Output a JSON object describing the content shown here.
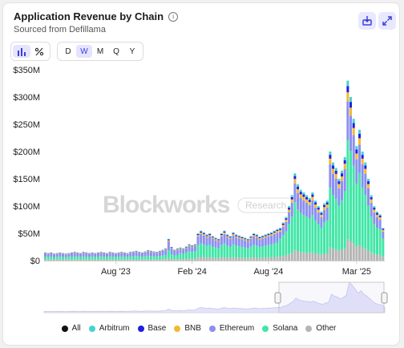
{
  "header": {
    "title": "Application Revenue by Chain",
    "subtitle": "Sourced from Defillama"
  },
  "toolbar": {
    "chart_types": [
      {
        "icon": "bar-chart-icon",
        "active": true
      },
      {
        "icon": "percent-icon",
        "active": false
      }
    ],
    "periods": [
      {
        "label": "D",
        "active": false
      },
      {
        "label": "W",
        "active": true
      },
      {
        "label": "M",
        "active": false
      },
      {
        "label": "Q",
        "active": false
      },
      {
        "label": "Y",
        "active": false
      }
    ]
  },
  "watermark": {
    "brand": "Blockworks",
    "badge": "Research"
  },
  "colors": {
    "Arbitrum": "#45d3d3",
    "Base": "#1f1fe0",
    "BNB": "#f2b933",
    "Ethereum": "#8b8ff0",
    "Solana": "#41e6a6",
    "Other": "#b5b5b5",
    "All": "#111111",
    "accent": "#3d3de0"
  },
  "legend": [
    {
      "name": "All",
      "color": "#111111"
    },
    {
      "name": "Arbitrum",
      "color": "#45d3d3"
    },
    {
      "name": "Base",
      "color": "#1f1fe0"
    },
    {
      "name": "BNB",
      "color": "#f2b933"
    },
    {
      "name": "Ethereum",
      "color": "#8b8ff0"
    },
    {
      "name": "Solana",
      "color": "#41e6a6"
    },
    {
      "name": "Other",
      "color": "#b5b5b5"
    }
  ],
  "chart_data": {
    "type": "bar",
    "stacked": true,
    "period": "weekly",
    "y_ticks": [
      "$0",
      "$50M",
      "$100M",
      "$150M",
      "$200M",
      "$250M",
      "$300M",
      "$350M"
    ],
    "x_ticks": [
      {
        "label": "Aug '23",
        "index": 24
      },
      {
        "label": "Feb '24",
        "index": 50
      },
      {
        "label": "Aug '24",
        "index": 76
      },
      {
        "label": "Mar '25",
        "index": 106
      }
    ],
    "ylim": [
      0,
      350
    ],
    "y_unit": "$M",
    "series_order": [
      "Other",
      "Solana",
      "Ethereum",
      "BNB",
      "Base",
      "Arbitrum"
    ],
    "totals": [
      15,
      14,
      15,
      13,
      14,
      15,
      14,
      13,
      14,
      15,
      16,
      15,
      14,
      16,
      15,
      14,
      15,
      14,
      15,
      16,
      15,
      14,
      16,
      15,
      14,
      15,
      16,
      15,
      14,
      16,
      17,
      18,
      16,
      15,
      17,
      19,
      18,
      17,
      16,
      18,
      20,
      22,
      40,
      25,
      20,
      22,
      24,
      22,
      26,
      30,
      28,
      30,
      50,
      55,
      52,
      48,
      50,
      45,
      42,
      40,
      50,
      55,
      48,
      45,
      52,
      48,
      46,
      44,
      42,
      40,
      45,
      50,
      48,
      44,
      46,
      48,
      50,
      52,
      55,
      58,
      60,
      70,
      80,
      100,
      120,
      160,
      140,
      130,
      125,
      120,
      115,
      125,
      110,
      100,
      90,
      105,
      110,
      200,
      180,
      170,
      150,
      165,
      190,
      330,
      300,
      260,
      210,
      240,
      200,
      180,
      150,
      120,
      100,
      90,
      85,
      60
    ],
    "solana_share": [
      0.35,
      0.35,
      0.35,
      0.35,
      0.35,
      0.35,
      0.35,
      0.35,
      0.35,
      0.35,
      0.35,
      0.35,
      0.35,
      0.35,
      0.35,
      0.35,
      0.35,
      0.35,
      0.35,
      0.35,
      0.35,
      0.35,
      0.35,
      0.35,
      0.35,
      0.35,
      0.35,
      0.35,
      0.35,
      0.35,
      0.35,
      0.35,
      0.35,
      0.35,
      0.35,
      0.35,
      0.35,
      0.35,
      0.35,
      0.35,
      0.35,
      0.35,
      0.35,
      0.35,
      0.35,
      0.35,
      0.45,
      0.45,
      0.45,
      0.45,
      0.45,
      0.45,
      0.45,
      0.45,
      0.45,
      0.45,
      0.45,
      0.45,
      0.45,
      0.45,
      0.45,
      0.45,
      0.45,
      0.45,
      0.45,
      0.45,
      0.45,
      0.45,
      0.45,
      0.45,
      0.45,
      0.45,
      0.45,
      0.45,
      0.45,
      0.45,
      0.45,
      0.45,
      0.45,
      0.45,
      0.55,
      0.55,
      0.55,
      0.55,
      0.55,
      0.55,
      0.55,
      0.55,
      0.55,
      0.55,
      0.55,
      0.55,
      0.55,
      0.55,
      0.55,
      0.55,
      0.55,
      0.55,
      0.55,
      0.55,
      0.55,
      0.55,
      0.55,
      0.55,
      0.55,
      0.55,
      0.55,
      0.55,
      0.55,
      0.55,
      0.55,
      0.55,
      0.55,
      0.55,
      0.55,
      0.55
    ]
  }
}
